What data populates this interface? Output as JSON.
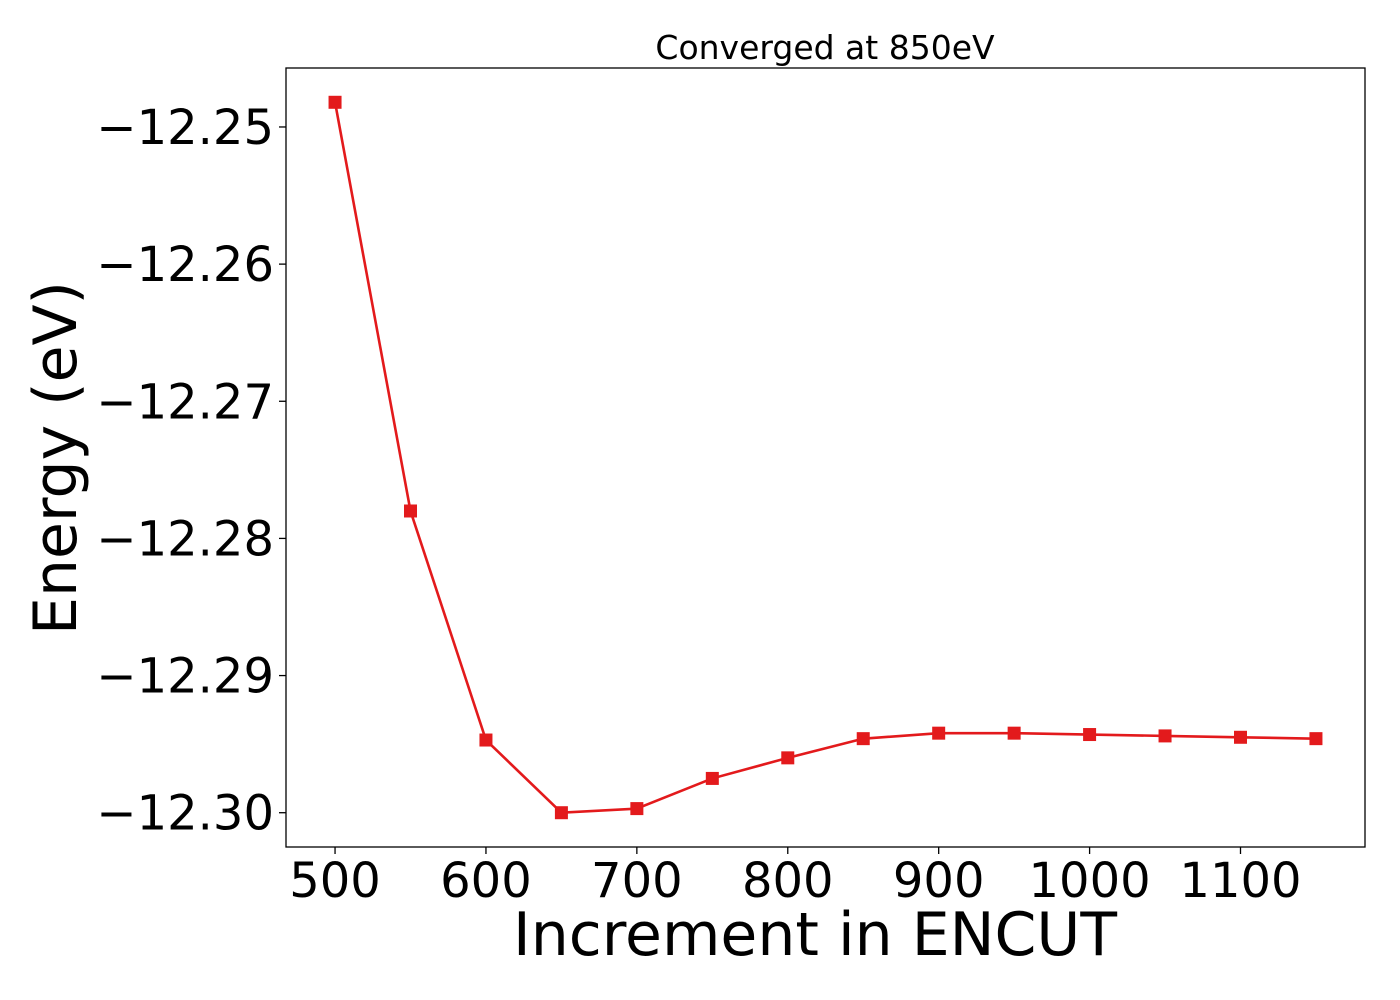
{
  "chart_data": {
    "type": "line",
    "title": "Converged at 850eV",
    "xlabel": "Increment in ENCUT",
    "ylabel": "Energy (eV)",
    "x": [
      500,
      550,
      600,
      650,
      700,
      750,
      800,
      850,
      900,
      950,
      1000,
      1050,
      1100,
      1150
    ],
    "series": [
      {
        "values": [
          -12.2482,
          -12.278,
          -12.2947,
          -12.3,
          -12.2997,
          -12.2975,
          -12.296,
          -12.2946,
          -12.2942,
          -12.2942,
          -12.2943,
          -12.2944,
          -12.2945,
          -12.2946
        ],
        "color": "#e31a1c",
        "marker": "square"
      }
    ],
    "xticks": [
      500,
      600,
      700,
      800,
      900,
      1000,
      1100
    ],
    "xtick_labels": [
      "500",
      "600",
      "700",
      "800",
      "900",
      "1000",
      "1100"
    ],
    "yticks": [
      -12.25,
      -12.26,
      -12.27,
      -12.28,
      -12.29,
      -12.3
    ],
    "ytick_labels": [
      "−12.25",
      "−12.26",
      "−12.27",
      "−12.28",
      "−12.29",
      "−12.30"
    ],
    "xlim": [
      467.5,
      1182.5
    ],
    "ylim": [
      -12.3025,
      -12.2457
    ],
    "grid": false,
    "legend": "none"
  }
}
